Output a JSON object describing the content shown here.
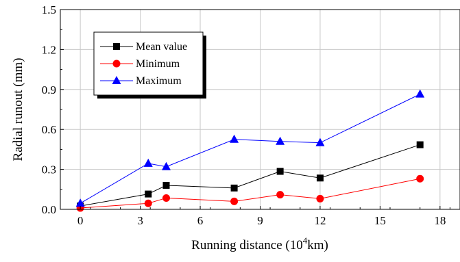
{
  "chart_data": {
    "type": "line",
    "title": "",
    "xlabel": "Running distance (10",
    "xlabel_sup": "4",
    "xlabel_end": "km)",
    "ylabel": "Radial runout (mm)",
    "xlim": [
      -1,
      19
    ],
    "ylim": [
      0,
      1.5
    ],
    "xticks": [
      0,
      3,
      6,
      9,
      12,
      15,
      18
    ],
    "xtick_labels": [
      "0",
      "3",
      "6",
      "9",
      "12",
      "15",
      "18"
    ],
    "yticks": [
      0,
      0.3,
      0.6,
      0.9,
      1.2,
      1.5
    ],
    "ytick_labels": [
      "0.0",
      "0.3",
      "0.6",
      "0.9",
      "1.2",
      "1.5"
    ],
    "grid": true,
    "legend_position": "top-left",
    "x": [
      0,
      3.4,
      4.3,
      7.7,
      10,
      12,
      17
    ],
    "series": [
      {
        "name": "Mean value",
        "color": "#000000",
        "marker": "square",
        "values": [
          0.025,
          0.115,
          0.18,
          0.16,
          0.285,
          0.235,
          0.485
        ]
      },
      {
        "name": "Minimum",
        "color": "#ff0000",
        "marker": "circle",
        "values": [
          0.01,
          0.045,
          0.085,
          0.06,
          0.11,
          0.08,
          0.23
        ]
      },
      {
        "name": "Maximum",
        "color": "#0000ff",
        "marker": "triangle",
        "values": [
          0.045,
          0.345,
          0.32,
          0.525,
          0.51,
          0.5,
          0.865
        ]
      }
    ]
  }
}
